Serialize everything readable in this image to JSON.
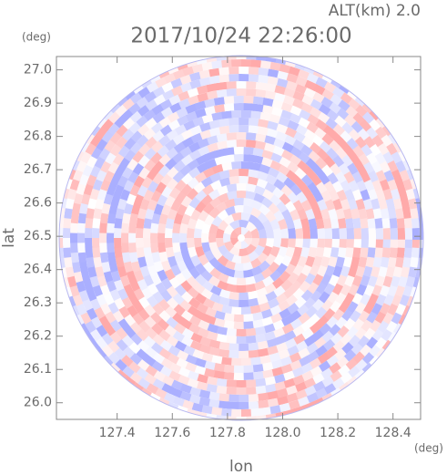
{
  "chart_data": {
    "type": "radar-image",
    "title": "2017/10/24 22:26:00",
    "subtitle": "ALT(km) 2.0",
    "x_label": "lon",
    "x_unit": "(deg)",
    "y_label": "lat",
    "y_unit": "(deg)",
    "xlim": [
      127.18,
      128.5
    ],
    "xticks": [
      127.4,
      127.6,
      127.8,
      {
        "value": 128.0,
        "label": "128.0"
      },
      128.2,
      128.4
    ],
    "ylim": [
      25.95,
      27.04
    ],
    "yticks": [
      {
        "value": 26.0,
        "label": "26.0"
      },
      26.1,
      26.2,
      26.3,
      26.4,
      26.5,
      26.6,
      26.7,
      26.8,
      26.9,
      {
        "value": 27.0,
        "label": "27.0"
      }
    ]
  }
}
